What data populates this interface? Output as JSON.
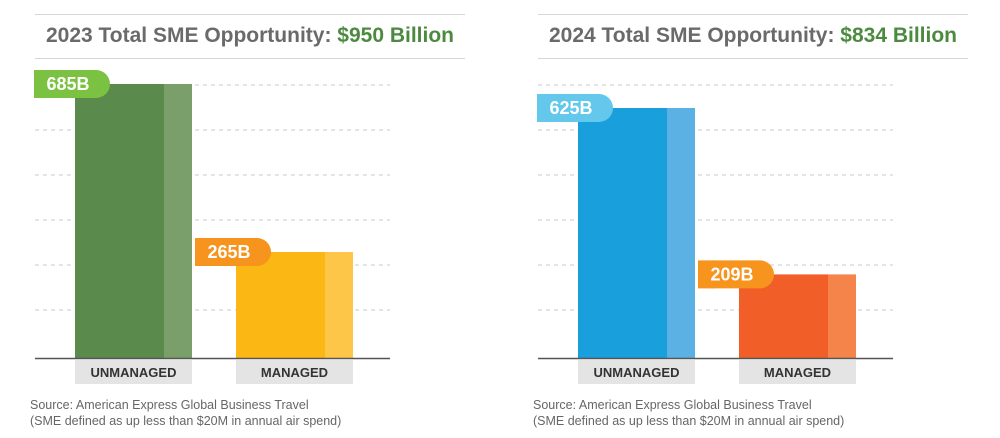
{
  "colors": {
    "title_text": "#6a6a6a",
    "title_amount": "#4c8a40",
    "source_text": "#666666",
    "category_box": "#e4e4e4",
    "grid": "#c8c8c8"
  },
  "charts": [
    {
      "title": "2023 Total SME Opportunity:",
      "amount": "$950 Billion",
      "source_line1": "Source: American Express Global Business Travel",
      "source_line2": "(SME defined as up less than $20M in annual air spend)"
    },
    {
      "title": "2024 Total SME Opportunity:",
      "amount": "$834 Billion",
      "source_line1": "Source: American Express Global Business Travel",
      "source_line2": "(SME defined as up less than $20M in annual air spend)"
    }
  ],
  "chart_data": [
    {
      "type": "bar",
      "title": "2023 Total SME Opportunity: $950 Billion",
      "categories": [
        "UNMANAGED",
        "MANAGED"
      ],
      "values": [
        685,
        265
      ],
      "data_labels": [
        "685B",
        "265B"
      ],
      "ylim": [
        0,
        700
      ],
      "grid": true,
      "bar_colors": [
        "#5a8a4c",
        "#fbb713"
      ],
      "bar_highlight_colors": [
        "#7a9f6b",
        "#fdc649"
      ],
      "label_colors": [
        "#7cc242",
        "#f7941d"
      ]
    },
    {
      "type": "bar",
      "title": "2024 Total SME Opportunity: $834 Billion",
      "categories": [
        "UNMANAGED",
        "MANAGED"
      ],
      "values": [
        625,
        209
      ],
      "data_labels": [
        "625B",
        "209B"
      ],
      "ylim": [
        0,
        700
      ],
      "grid": true,
      "bar_colors": [
        "#199fdc",
        "#f15e28"
      ],
      "bar_highlight_colors": [
        "#5bb0e4",
        "#f4844a"
      ],
      "label_colors": [
        "#63c8ec",
        "#f7941d"
      ]
    }
  ]
}
